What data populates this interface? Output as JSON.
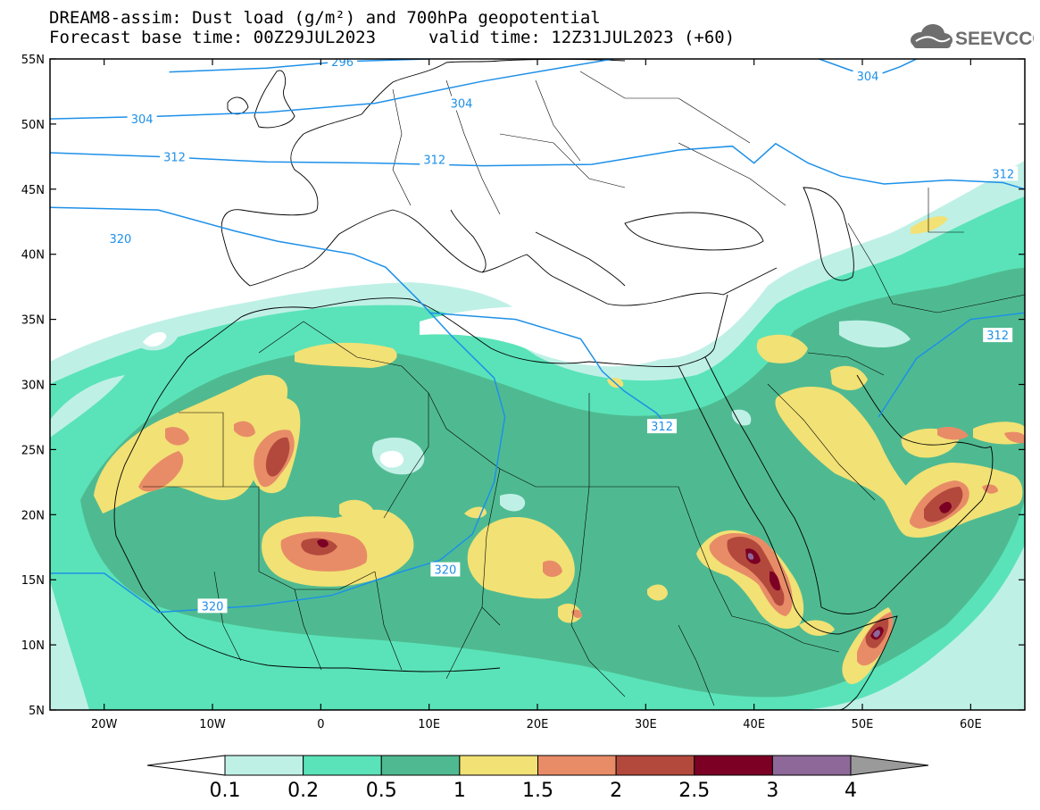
{
  "title": {
    "line1": "DREAM8-assim: Dust load (g/m²) and 700hPa geopotential",
    "base_time": "Forecast base time: 00Z29JUL2023",
    "valid_time": "valid time: 12Z31JUL2023 (+60)"
  },
  "logo": {
    "text": "SEEVCCC",
    "icon": "cloud-icon",
    "color": "#6e6e6e"
  },
  "map": {
    "lon_range": [
      -25,
      65
    ],
    "lat_range": [
      5,
      55
    ],
    "lat_ticks": [
      {
        "v": 55,
        "label": "55N"
      },
      {
        "v": 50,
        "label": "50N"
      },
      {
        "v": 45,
        "label": "45N"
      },
      {
        "v": 40,
        "label": "40N"
      },
      {
        "v": 35,
        "label": "35N"
      },
      {
        "v": 30,
        "label": "30N"
      },
      {
        "v": 25,
        "label": "25N"
      },
      {
        "v": 20,
        "label": "20N"
      },
      {
        "v": 15,
        "label": "15N"
      },
      {
        "v": 10,
        "label": "10N"
      },
      {
        "v": 5,
        "label": "5N"
      }
    ],
    "lon_ticks": [
      {
        "v": -20,
        "label": "20W"
      },
      {
        "v": -10,
        "label": "10W"
      },
      {
        "v": 0,
        "label": "0"
      },
      {
        "v": 10,
        "label": "10E"
      },
      {
        "v": 20,
        "label": "20E"
      },
      {
        "v": 30,
        "label": "30E"
      },
      {
        "v": 40,
        "label": "40E"
      },
      {
        "v": 50,
        "label": "50E"
      },
      {
        "v": 60,
        "label": "60E"
      }
    ],
    "contour_color": "#1e90e8",
    "contours": [
      {
        "value": "296",
        "path": [
          [
            -14,
            54.0
          ],
          [
            -5,
            54.3
          ],
          [
            2,
            54.8
          ],
          [
            10,
            55
          ]
        ],
        "label_at": [
          2,
          54.8
        ]
      },
      {
        "value": "304",
        "path": [
          [
            -25,
            50.4
          ],
          [
            -15,
            50.6
          ],
          [
            -5,
            50.9
          ],
          [
            5,
            51.6
          ],
          [
            15,
            53.3
          ],
          [
            22,
            54.3
          ],
          [
            27,
            55
          ]
        ],
        "label_at": [
          -16.5,
          50.4
        ],
        "label2_at": [
          13,
          51.6
        ]
      },
      {
        "value": "304",
        "path": [
          [
            46,
            55
          ],
          [
            49,
            54.1
          ],
          [
            51.5,
            53.8
          ],
          [
            53.5,
            54.4
          ],
          [
            55,
            55
          ]
        ],
        "label_at": [
          50.5,
          53.7
        ]
      },
      {
        "value": "312",
        "path": [
          [
            -25,
            47.8
          ],
          [
            -15,
            47.5
          ],
          [
            -5,
            47.1
          ],
          [
            5,
            47.0
          ],
          [
            15,
            46.8
          ],
          [
            25,
            46.9
          ],
          [
            33,
            48.0
          ],
          [
            38,
            48.3
          ],
          [
            40,
            47.0
          ],
          [
            42,
            48.5
          ],
          [
            45,
            47.0
          ],
          [
            48,
            46.0
          ],
          [
            52,
            45.4
          ],
          [
            58,
            45.7
          ],
          [
            63,
            45.5
          ],
          [
            65,
            45
          ]
        ],
        "label_at": [
          -13.5,
          47.5
        ],
        "label2_at": [
          10.5,
          47.3
        ],
        "label3_at": [
          63,
          46.2
        ]
      },
      {
        "value": "312",
        "path": [
          [
            10,
            35.5
          ],
          [
            18,
            35.0
          ],
          [
            24,
            33.5
          ],
          [
            26,
            31.0
          ],
          [
            28,
            29.5
          ],
          [
            31,
            27.8
          ],
          [
            32,
            26.8
          ]
        ],
        "label_at": [
          31.5,
          26.8
        ]
      },
      {
        "value": "312",
        "path": [
          [
            51.5,
            27.5
          ],
          [
            55,
            32.0
          ],
          [
            60,
            35.0
          ],
          [
            65,
            35.5
          ]
        ],
        "label_at": [
          62.5,
          33.8
        ]
      },
      {
        "value": "320",
        "path": [
          [
            -25,
            43.6
          ],
          [
            -15,
            43.4
          ],
          [
            -8,
            41.8
          ],
          [
            -4,
            41.0
          ],
          [
            3,
            40.0
          ],
          [
            6,
            39.0
          ],
          [
            9,
            36.5
          ],
          [
            12,
            33.8
          ],
          [
            16,
            30.5
          ],
          [
            17,
            27.5
          ],
          [
            16,
            22.5
          ],
          [
            14,
            18.5
          ],
          [
            11,
            16.5
          ],
          [
            7,
            15.5
          ],
          [
            1,
            13.8
          ],
          [
            -6,
            13.0
          ],
          [
            -15,
            12.5
          ],
          [
            -20,
            15.5
          ],
          [
            -25,
            15.5
          ]
        ],
        "label_at": [
          -18.5,
          41.2
        ],
        "label2_at": [
          11.5,
          15.8
        ],
        "label3_at": [
          -10,
          13.0
        ]
      }
    ],
    "land_outline_color": "#000000"
  },
  "colorbar": {
    "boundaries": [
      "0.1",
      "0.2",
      "0.5",
      "1",
      "1.5",
      "2",
      "2.5",
      "3",
      "4"
    ],
    "colors": [
      "#ffffff",
      "#bff0e6",
      "#5ae3b8",
      "#4fba91",
      "#f2e175",
      "#e88c67",
      "#b3493c",
      "#7c0024",
      "#8d6898",
      "#9a9a9a"
    ]
  },
  "dust_palette": {
    "0.1": "#bff0e6",
    "0.2": "#5ae3b8",
    "0.5": "#4fba91",
    "1": "#f2e175",
    "1.5": "#e88c67",
    "2": "#b3493c",
    "2.5": "#7c0024",
    "3": "#8d6898"
  }
}
